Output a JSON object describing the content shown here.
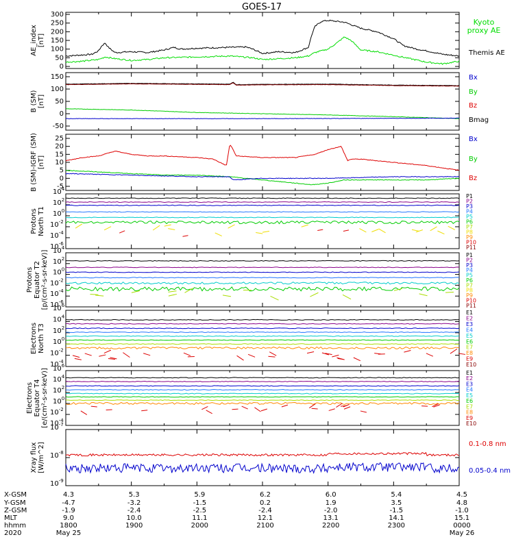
{
  "title": "GOES-17",
  "chart_data": [
    {
      "type": "line",
      "ylabel": [
        "AE_index",
        "[nT]"
      ],
      "yticks": [
        "300",
        "250",
        "200",
        "150",
        "100",
        "50",
        "0"
      ],
      "ylim": [
        0,
        320
      ],
      "legend": [
        {
          "text": "Kyoto",
          "color": "#00dd00"
        },
        {
          "text": "proxy AE",
          "color": "#00dd00"
        },
        {
          "text": "Themis AE",
          "color": "#000000"
        }
      ],
      "series": [
        {
          "name": "Themis AE",
          "color": "#000000",
          "x_hours": [
            0,
            0.4,
            0.8,
            1.0,
            1.1,
            1.2,
            1.3,
            1.5,
            2,
            2.5,
            3,
            3.3,
            3.5,
            4,
            5,
            5.5,
            5.7,
            6,
            6.5,
            7,
            7.4,
            7.5,
            7.6,
            7.8,
            8,
            8.5,
            9,
            9.5,
            10,
            10.3,
            10.7,
            11,
            11.5,
            12
          ],
          "values": [
            60,
            65,
            70,
            90,
            120,
            135,
            110,
            80,
            85,
            80,
            95,
            110,
            100,
            105,
            110,
            112,
            100,
            75,
            85,
            80,
            110,
            180,
            230,
            260,
            265,
            255,
            220,
            200,
            160,
            120,
            100,
            90,
            70,
            60
          ]
        },
        {
          "name": "Kyoto proxy AE",
          "color": "#00dd00",
          "x_hours": [
            0,
            0.5,
            1,
            1.2,
            1.5,
            2,
            2.5,
            3,
            4,
            5,
            5.7,
            6,
            6.5,
            7,
            7.4,
            7.6,
            8,
            8.3,
            8.5,
            8.7,
            9,
            9.5,
            10,
            10.5,
            11,
            11.5,
            12
          ],
          "values": [
            25,
            30,
            40,
            55,
            45,
            35,
            40,
            50,
            55,
            60,
            50,
            40,
            45,
            50,
            60,
            80,
            100,
            140,
            170,
            150,
            95,
            85,
            65,
            45,
            25,
            15,
            30
          ]
        }
      ]
    },
    {
      "type": "line",
      "ylabel": [
        "B (SM)",
        "[nT]"
      ],
      "yticks": [
        "150",
        "100",
        "50",
        "0",
        "-50"
      ],
      "ylim": [
        -60,
        160
      ],
      "legend": [
        {
          "text": "Bx",
          "color": "#0000cc"
        },
        {
          "text": "By",
          "color": "#00cc00"
        },
        {
          "text": "Bz",
          "color": "#dd0000"
        },
        {
          "text": "Bmag",
          "color": "#000000"
        }
      ],
      "series": [
        {
          "name": "Bmag",
          "color": "#000000",
          "x_hours": [
            0,
            2,
            4,
            5,
            5.1,
            5.2,
            6,
            8,
            10,
            12
          ],
          "values": [
            120,
            123,
            121,
            120,
            128,
            118,
            119,
            120,
            116,
            114
          ]
        },
        {
          "name": "Bz",
          "color": "#880000",
          "x_hours": [
            0,
            2,
            4,
            5,
            5.1,
            5.2,
            6,
            8,
            10,
            12
          ],
          "values": [
            118,
            121,
            119,
            118,
            126,
            116,
            117,
            118,
            114,
            112
          ]
        },
        {
          "name": "By",
          "color": "#00cc00",
          "x_hours": [
            0,
            2,
            4,
            6,
            8,
            10,
            12
          ],
          "values": [
            20,
            15,
            5,
            0,
            -5,
            -12,
            -20
          ]
        },
        {
          "name": "Bx",
          "color": "#0000cc",
          "x_hours": [
            0,
            3,
            6,
            9,
            12
          ],
          "values": [
            -20,
            -20,
            -20,
            -19,
            -18
          ]
        }
      ]
    },
    {
      "type": "line",
      "ylabel": [
        "B (SM)-IGRF (SM)",
        "[nT]"
      ],
      "yticks": [
        "25",
        "20",
        "15",
        "10",
        "5",
        "0",
        "-5"
      ],
      "ylim": [
        -7,
        26
      ],
      "legend": [
        {
          "text": "Bx",
          "color": "#0000cc"
        },
        {
          "text": "By",
          "color": "#00cc00"
        },
        {
          "text": "Bz",
          "color": "#dd0000"
        }
      ],
      "series": [
        {
          "name": "Bz",
          "color": "#dd0000",
          "x_hours": [
            0,
            0.5,
            1,
            1.5,
            2,
            2.5,
            3,
            4,
            4.5,
            4.9,
            5,
            5.05,
            5.2,
            6,
            7,
            7.6,
            8,
            8.4,
            8.6,
            8.7,
            9,
            10,
            11,
            12
          ],
          "values": [
            11,
            13,
            14,
            17,
            15,
            14,
            14,
            13,
            12,
            8,
            21,
            20,
            14,
            13,
            13,
            15,
            18,
            20,
            11,
            12,
            12,
            10,
            8,
            5
          ]
        },
        {
          "name": "By",
          "color": "#00cc00",
          "x_hours": [
            0,
            1,
            2,
            3,
            4,
            5,
            6,
            7,
            7.5,
            8,
            8.5,
            9,
            10,
            11,
            12
          ],
          "values": [
            5,
            4,
            3,
            2,
            2,
            1,
            -1,
            -3,
            -4,
            -3,
            -1,
            -1,
            -1,
            -1,
            0
          ]
        },
        {
          "name": "Bx",
          "color": "#0000cc",
          "x_hours": [
            0,
            2,
            4,
            5,
            5.1,
            6,
            8,
            10,
            12
          ],
          "values": [
            3,
            2,
            1,
            1,
            -1,
            0,
            0,
            1,
            1
          ]
        }
      ]
    },
    {
      "type": "line",
      "ylabel": [
        "Protons",
        "North T1"
      ],
      "yticks": [
        "10^4",
        "10^2",
        "10^0",
        "10^-2",
        "10^-4",
        "10^-6"
      ],
      "legend": [
        {
          "text": "P1",
          "color": "#000000"
        },
        {
          "text": "P2",
          "color": "#880088"
        },
        {
          "text": "P3",
          "color": "#0000cc"
        },
        {
          "text": "P4",
          "color": "#2277ff"
        },
        {
          "text": "P5",
          "color": "#00cccc"
        },
        {
          "text": "P6",
          "color": "#00cc00"
        },
        {
          "text": "P7",
          "color": "#aadd00"
        },
        {
          "text": "P8",
          "color": "#eedd00"
        },
        {
          "text": "P9",
          "color": "#ff8800"
        },
        {
          "text": "P10",
          "color": "#dd0000"
        },
        {
          "text": "P11",
          "color": "#880000"
        }
      ]
    },
    {
      "type": "line",
      "ylabel": [
        "Protons",
        "Equator T2",
        "[p/(cm²-s-sr-keV)]"
      ],
      "yticks": [
        "10^4",
        "10^2",
        "10^0",
        "10^-2",
        "10^-4",
        "10^-6"
      ],
      "legend": [
        {
          "text": "P1",
          "color": "#000000"
        },
        {
          "text": "P2",
          "color": "#880088"
        },
        {
          "text": "P3",
          "color": "#0000cc"
        },
        {
          "text": "P4",
          "color": "#2277ff"
        },
        {
          "text": "P5",
          "color": "#00cccc"
        },
        {
          "text": "P6",
          "color": "#00cc00"
        },
        {
          "text": "P7",
          "color": "#aadd00"
        },
        {
          "text": "P8",
          "color": "#eedd00"
        },
        {
          "text": "P9",
          "color": "#ff8800"
        },
        {
          "text": "P10",
          "color": "#dd0000"
        },
        {
          "text": "P11",
          "color": "#880000"
        }
      ]
    },
    {
      "type": "line",
      "ylabel": [
        "Electrons",
        "North T3"
      ],
      "yticks": [
        "10^6",
        "10^4",
        "10^2",
        "10^0",
        "10^-2",
        "10^-4"
      ],
      "legend": [
        {
          "text": "E1",
          "color": "#000000"
        },
        {
          "text": "E2",
          "color": "#880088"
        },
        {
          "text": "E3",
          "color": "#0000cc"
        },
        {
          "text": "E4",
          "color": "#2277ff"
        },
        {
          "text": "E5",
          "color": "#00cccc"
        },
        {
          "text": "E6",
          "color": "#00cc00"
        },
        {
          "text": "E7",
          "color": "#aadd00"
        },
        {
          "text": "E8",
          "color": "#ff8800"
        },
        {
          "text": "E9",
          "color": "#dd0000"
        },
        {
          "text": "E10",
          "color": "#880000"
        }
      ]
    },
    {
      "type": "line",
      "ylabel": [
        "Electrons",
        "Equator T4",
        "[e/(cm²-s-sr-keV)]"
      ],
      "yticks": [
        "10^6",
        "10^4",
        "10^2",
        "10^0",
        "10^-2",
        "10^-4"
      ],
      "legend": [
        {
          "text": "E1",
          "color": "#000000"
        },
        {
          "text": "E2",
          "color": "#880088"
        },
        {
          "text": "E3",
          "color": "#0000cc"
        },
        {
          "text": "E4",
          "color": "#2277ff"
        },
        {
          "text": "E5",
          "color": "#00cccc"
        },
        {
          "text": "E6",
          "color": "#00cc00"
        },
        {
          "text": "E7",
          "color": "#aadd00"
        },
        {
          "text": "E8",
          "color": "#ff8800"
        },
        {
          "text": "E9",
          "color": "#dd0000"
        },
        {
          "text": "E10",
          "color": "#880000"
        }
      ]
    },
    {
      "type": "line",
      "ylabel": [
        "Xray flux",
        "[W/m^2]"
      ],
      "yticks": [
        "10^-7",
        "10^-8",
        "10^-9"
      ],
      "ylim_log10": [
        -9.1,
        -7
      ],
      "legend": [
        {
          "text": "0.1-0.8 nm",
          "color": "#dd0000"
        },
        {
          "text": "0.05-0.4 nm",
          "color": "#0000cc"
        }
      ],
      "series": [
        {
          "name": "0.1-0.8 nm",
          "color": "#dd0000",
          "log10_level": -7.95
        },
        {
          "name": "0.05-0.4 nm",
          "color": "#0000cc",
          "log10_level": -8.45
        }
      ]
    }
  ],
  "axis_table": {
    "labels": [
      "X-GSM",
      "Y-GSM",
      "Z-GSM",
      "MLT",
      "hhmm",
      "2020"
    ],
    "columns": [
      [
        "4.3",
        "-4.7",
        "-1.9",
        "9.0",
        "1800",
        "May 25"
      ],
      [
        "5.3",
        "-3.2",
        "-2.4",
        "10.0",
        "1900",
        ""
      ],
      [
        "5.9",
        "-1.5",
        "-2.5",
        "11.1",
        "2000",
        ""
      ],
      [
        "6.2",
        "0.2",
        "-2.4",
        "12.1",
        "2100",
        ""
      ],
      [
        "6.0",
        "1.9",
        "-2.0",
        "13.1",
        "2200",
        ""
      ],
      [
        "5.4",
        "3.5",
        "-1.5",
        "14.1",
        "2300",
        ""
      ],
      [
        "4.5",
        "4.8",
        "-1.0",
        "15.1",
        "0000",
        "May 26"
      ]
    ]
  }
}
